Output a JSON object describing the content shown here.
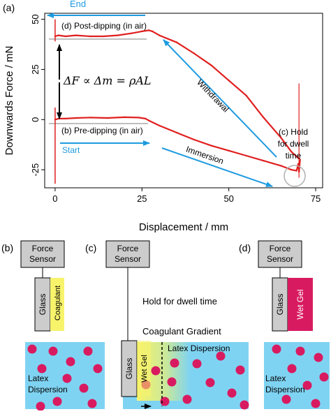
{
  "chart_data": {
    "type": "line",
    "panel_label": "(a)",
    "xlabel": "Displacement / mm",
    "ylabel": "Downwards Force / mN",
    "xlim": [
      -3,
      77
    ],
    "ylim": [
      -34,
      53
    ],
    "x_ticks": [
      "0",
      "25",
      "50",
      "75"
    ],
    "y_ticks": [
      "-25",
      "0",
      "25",
      "50"
    ],
    "x_tick_values": [
      0,
      25,
      50,
      75
    ],
    "y_tick_values": [
      -25,
      0,
      25,
      50
    ],
    "series": [
      {
        "line_color": "#e01f1f",
        "x": [
          0,
          1,
          3,
          6,
          10,
          15,
          20,
          24,
          26,
          27,
          30,
          35,
          40,
          45,
          50,
          55,
          60,
          65,
          68,
          69.5,
          70,
          70.2,
          70.5,
          68,
          65,
          60,
          55,
          50,
          45,
          40,
          35,
          30,
          28,
          27,
          25,
          22,
          18,
          14,
          10,
          6,
          3,
          1,
          0
        ],
        "force": [
          0,
          0.5,
          0.5,
          0.8,
          1,
          0.8,
          1.2,
          1,
          0.5,
          -0.5,
          -3,
          -6.5,
          -10,
          -13,
          -15.5,
          -18,
          -20.5,
          -23,
          -25,
          -25.5,
          -22,
          -26,
          -20,
          -16,
          -9,
          1,
          12,
          19.5,
          27,
          33,
          38.5,
          42,
          44,
          44.5,
          44,
          43,
          42,
          41.5,
          41.5,
          42,
          41.5,
          42,
          41.5
        ]
      }
    ],
    "annotations": {
      "end": "End",
      "post": "(d) Post-dipping (in air)",
      "formula": "ΔF ∝ Δm = ρAL",
      "withdrawal": "Withdrawal",
      "pre": "(b) Pre-dipping (in air)",
      "start": "Start",
      "immersion": "Immersion",
      "hold_1": "(c) Hold",
      "hold_2": "for dwell",
      "hold_3": "time"
    }
  },
  "panels": {
    "b": {
      "label": "(b)",
      "sensor_1": "Force",
      "sensor_2": "Sensor",
      "glass": "Glass",
      "coagulant": "Coagulant",
      "latex_1": "Latex",
      "latex_2": "Dispersion"
    },
    "c": {
      "label": "(c)",
      "sensor_1": "Force",
      "sensor_2": "Sensor",
      "hold": "Hold for dwell time",
      "gradient": "Coagulant Gradient",
      "latex": "Latex Dispersion",
      "glass": "Glass",
      "wetgel": "Wet Gel"
    },
    "d": {
      "label": "(d)",
      "sensor_1": "Force",
      "sensor_2": "Sensor",
      "glass": "Glass",
      "wetgel": "Wet Gel",
      "latex_1": "Latex",
      "latex_2": "Dispersion"
    }
  },
  "colors": {
    "trace": "#e01f1f",
    "arrow": "#1e9be0",
    "dispersion": "#7fd3f2",
    "particle": "#d81b60",
    "coagulant": "#f7f36b",
    "wet_gel": "#d81b60",
    "sensor_gray": "#cccccc"
  }
}
